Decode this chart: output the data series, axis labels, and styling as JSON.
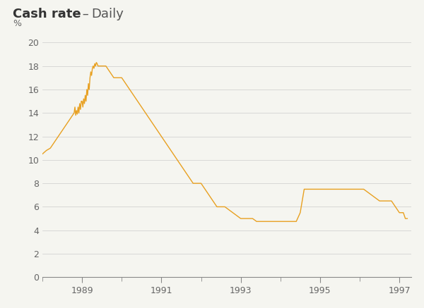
{
  "title_bold": "Cash rate",
  "title_dash": " – ",
  "title_light": "Daily",
  "ylabel": "%",
  "line_color": "#E8A020",
  "background_header": "#D6DDD8",
  "background_plot": "#F5F5F0",
  "ylim": [
    0,
    21
  ],
  "yticks": [
    0,
    2,
    4,
    6,
    8,
    10,
    12,
    14,
    16,
    18,
    20
  ],
  "xtick_years": [
    1989,
    1991,
    1993,
    1995,
    1997
  ],
  "series": [
    [
      1988.0,
      10.5
    ],
    [
      1988.1,
      10.8
    ],
    [
      1988.2,
      11.0
    ],
    [
      1988.3,
      11.5
    ],
    [
      1988.4,
      12.0
    ],
    [
      1988.5,
      12.5
    ],
    [
      1988.6,
      13.0
    ],
    [
      1988.7,
      13.5
    ],
    [
      1988.8,
      14.0
    ],
    [
      1988.82,
      14.5
    ],
    [
      1988.84,
      13.8
    ],
    [
      1988.86,
      14.2
    ],
    [
      1988.88,
      13.9
    ],
    [
      1988.9,
      14.5
    ],
    [
      1988.92,
      14.0
    ],
    [
      1988.94,
      14.8
    ],
    [
      1988.96,
      14.3
    ],
    [
      1988.98,
      15.0
    ],
    [
      1989.0,
      15.0
    ],
    [
      1989.02,
      14.5
    ],
    [
      1989.04,
      15.2
    ],
    [
      1989.06,
      14.8
    ],
    [
      1989.08,
      15.5
    ],
    [
      1989.1,
      15.0
    ],
    [
      1989.12,
      16.0
    ],
    [
      1989.14,
      15.5
    ],
    [
      1989.16,
      16.5
    ],
    [
      1989.18,
      16.0
    ],
    [
      1989.2,
      17.0
    ],
    [
      1989.22,
      17.5
    ],
    [
      1989.24,
      17.2
    ],
    [
      1989.26,
      17.8
    ],
    [
      1989.28,
      18.0
    ],
    [
      1989.3,
      17.8
    ],
    [
      1989.32,
      18.2
    ],
    [
      1989.34,
      18.0
    ],
    [
      1989.36,
      18.3
    ],
    [
      1989.38,
      18.2
    ],
    [
      1989.4,
      18.0
    ],
    [
      1989.5,
      18.0
    ],
    [
      1989.6,
      18.0
    ],
    [
      1989.7,
      17.5
    ],
    [
      1989.8,
      17.0
    ],
    [
      1989.9,
      17.0
    ],
    [
      1990.0,
      17.0
    ],
    [
      1990.1,
      16.5
    ],
    [
      1990.2,
      16.0
    ],
    [
      1990.3,
      15.5
    ],
    [
      1990.4,
      15.0
    ],
    [
      1990.5,
      14.5
    ],
    [
      1990.6,
      14.0
    ],
    [
      1990.7,
      13.5
    ],
    [
      1990.8,
      13.0
    ],
    [
      1990.9,
      12.5
    ],
    [
      1991.0,
      12.0
    ],
    [
      1991.1,
      11.5
    ],
    [
      1991.2,
      11.0
    ],
    [
      1991.3,
      10.5
    ],
    [
      1991.4,
      10.0
    ],
    [
      1991.5,
      9.5
    ],
    [
      1991.6,
      9.0
    ],
    [
      1991.7,
      8.5
    ],
    [
      1991.8,
      8.0
    ],
    [
      1991.9,
      8.0
    ],
    [
      1992.0,
      8.0
    ],
    [
      1992.1,
      7.5
    ],
    [
      1992.2,
      7.0
    ],
    [
      1992.3,
      6.5
    ],
    [
      1992.4,
      6.0
    ],
    [
      1992.5,
      6.0
    ],
    [
      1992.6,
      6.0
    ],
    [
      1992.7,
      5.75
    ],
    [
      1992.8,
      5.5
    ],
    [
      1992.9,
      5.25
    ],
    [
      1993.0,
      5.0
    ],
    [
      1993.1,
      5.0
    ],
    [
      1993.2,
      5.0
    ],
    [
      1993.3,
      5.0
    ],
    [
      1993.4,
      4.75
    ],
    [
      1993.5,
      4.75
    ],
    [
      1993.6,
      4.75
    ],
    [
      1993.7,
      4.75
    ],
    [
      1993.8,
      4.75
    ],
    [
      1993.9,
      4.75
    ],
    [
      1994.0,
      4.75
    ],
    [
      1994.1,
      4.75
    ],
    [
      1994.2,
      4.75
    ],
    [
      1994.3,
      4.75
    ],
    [
      1994.4,
      4.75
    ],
    [
      1994.5,
      5.5
    ],
    [
      1994.55,
      6.5
    ],
    [
      1994.6,
      7.5
    ],
    [
      1994.65,
      7.5
    ],
    [
      1994.7,
      7.5
    ],
    [
      1994.75,
      7.5
    ],
    [
      1994.8,
      7.5
    ],
    [
      1994.85,
      7.5
    ],
    [
      1994.9,
      7.5
    ],
    [
      1994.95,
      7.5
    ],
    [
      1995.0,
      7.5
    ],
    [
      1995.1,
      7.5
    ],
    [
      1995.2,
      7.5
    ],
    [
      1995.3,
      7.5
    ],
    [
      1995.4,
      7.5
    ],
    [
      1995.5,
      7.5
    ],
    [
      1995.6,
      7.5
    ],
    [
      1995.7,
      7.5
    ],
    [
      1995.8,
      7.5
    ],
    [
      1995.9,
      7.5
    ],
    [
      1996.0,
      7.5
    ],
    [
      1996.1,
      7.5
    ],
    [
      1996.2,
      7.25
    ],
    [
      1996.3,
      7.0
    ],
    [
      1996.4,
      6.75
    ],
    [
      1996.5,
      6.5
    ],
    [
      1996.6,
      6.5
    ],
    [
      1996.7,
      6.5
    ],
    [
      1996.8,
      6.5
    ],
    [
      1996.85,
      6.25
    ],
    [
      1996.9,
      6.0
    ],
    [
      1996.95,
      5.75
    ],
    [
      1997.0,
      5.5
    ],
    [
      1997.05,
      5.5
    ],
    [
      1997.1,
      5.5
    ],
    [
      1997.15,
      5.0
    ],
    [
      1997.2,
      5.0
    ]
  ]
}
